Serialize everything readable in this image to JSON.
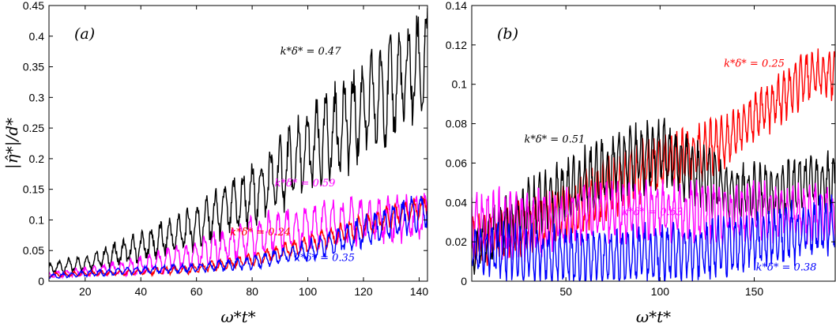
{
  "chart_data": [
    {
      "type": "line",
      "panel_label": "(a)",
      "xlabel": "ω*t*",
      "ylabel": "|η̂*|/d*",
      "xlim": [
        7,
        143
      ],
      "ylim": [
        0,
        0.45
      ],
      "xticks": [
        20,
        40,
        60,
        80,
        100,
        120,
        140
      ],
      "yticks": [
        0,
        0.05,
        0.1,
        0.15,
        0.2,
        0.25,
        0.3,
        0.35,
        0.4,
        0.45
      ],
      "ytick_labels": [
        "0",
        "0.05",
        "0.1",
        "0.15",
        "0.2",
        "0.25",
        "0.3",
        "0.35",
        "0.4",
        "0.45"
      ],
      "series": [
        {
          "name": "k*δ* = 0.47",
          "color": "#000000",
          "period": 3.3,
          "x": [
            7,
            20,
            40,
            60,
            80,
            100,
            120,
            143
          ],
          "mean": [
            0.02,
            0.03,
            0.055,
            0.09,
            0.14,
            0.21,
            0.28,
            0.36
          ],
          "amp": [
            0.008,
            0.01,
            0.02,
            0.03,
            0.04,
            0.055,
            0.065,
            0.07
          ]
        },
        {
          "name": "k*δ* = 0.59",
          "color": "#ff00ff",
          "period": 3.3,
          "x": [
            7,
            20,
            40,
            60,
            80,
            100,
            120,
            143
          ],
          "mean": [
            0.01,
            0.015,
            0.025,
            0.045,
            0.07,
            0.09,
            0.1,
            0.105
          ],
          "amp": [
            0.004,
            0.006,
            0.012,
            0.02,
            0.028,
            0.03,
            0.03,
            0.03
          ]
        },
        {
          "name": "k*δ* = 0.24",
          "color": "#ff0000",
          "period": 3.3,
          "x": [
            7,
            20,
            40,
            60,
            80,
            100,
            120,
            143
          ],
          "mean": [
            0.01,
            0.012,
            0.015,
            0.02,
            0.035,
            0.06,
            0.09,
            0.125
          ],
          "amp": [
            0.003,
            0.003,
            0.004,
            0.006,
            0.008,
            0.012,
            0.015,
            0.015
          ]
        },
        {
          "name": "k*δ* = 0.35",
          "color": "#0000ff",
          "period": 3.3,
          "x": [
            7,
            20,
            40,
            60,
            80,
            100,
            120,
            143
          ],
          "mean": [
            0.008,
            0.012,
            0.018,
            0.022,
            0.03,
            0.05,
            0.08,
            0.12
          ],
          "amp": [
            0.003,
            0.004,
            0.005,
            0.006,
            0.009,
            0.014,
            0.02,
            0.025
          ]
        }
      ],
      "annotations": [
        {
          "text": "k*δ* = 0.47",
          "color": "#000000",
          "x": 101,
          "y": 0.37
        },
        {
          "text": "k*δ* = 0.59",
          "color": "#ff00ff",
          "x": 99,
          "y": 0.155
        },
        {
          "text": "k*δ* = 0.24",
          "color": "#ff0000",
          "x": 83,
          "y": 0.075
        },
        {
          "text": "k*δ* = 0.35",
          "color": "#0000ff",
          "x": 106,
          "y": 0.033
        }
      ]
    },
    {
      "type": "line",
      "panel_label": "(b)",
      "xlabel": "ω*t*",
      "ylabel": "",
      "xlim": [
        0,
        193
      ],
      "ylim": [
        0,
        0.14
      ],
      "xticks": [
        50,
        100,
        150
      ],
      "yticks": [
        0,
        0.02,
        0.04,
        0.06,
        0.08,
        0.1,
        0.12,
        0.14
      ],
      "ytick_labels": [
        "0",
        "0.02",
        "0.04",
        "0.06",
        "0.08",
        "0.1",
        "0.12",
        "0.14"
      ],
      "series": [
        {
          "name": "k*δ* = 0.25",
          "color": "#ff0000",
          "period": 3,
          "x": [
            0,
            20,
            40,
            60,
            80,
            100,
            120,
            140,
            160,
            180,
            193
          ],
          "mean": [
            0.02,
            0.025,
            0.03,
            0.04,
            0.05,
            0.06,
            0.065,
            0.075,
            0.09,
            0.105,
            0.105
          ],
          "amp": [
            0.01,
            0.01,
            0.012,
            0.012,
            0.012,
            0.012,
            0.012,
            0.01,
            0.01,
            0.01,
            0.01
          ]
        },
        {
          "name": "k*δ* = 0.51",
          "color": "#000000",
          "period": 3,
          "x": [
            0,
            20,
            40,
            60,
            80,
            100,
            120,
            140,
            160,
            180,
            193
          ],
          "mean": [
            0.015,
            0.03,
            0.04,
            0.05,
            0.06,
            0.065,
            0.055,
            0.045,
            0.045,
            0.05,
            0.05
          ],
          "amp": [
            0.01,
            0.012,
            0.014,
            0.014,
            0.014,
            0.014,
            0.014,
            0.012,
            0.012,
            0.012,
            0.012
          ]
        },
        {
          "name": "k*δ* = 0.63",
          "color": "#ff00ff",
          "period": 3,
          "x": [
            0,
            20,
            40,
            60,
            80,
            100,
            120,
            140,
            160,
            180,
            193
          ],
          "mean": [
            0.03,
            0.028,
            0.03,
            0.035,
            0.035,
            0.035,
            0.035,
            0.035,
            0.035,
            0.035,
            0.035
          ],
          "amp": [
            0.014,
            0.014,
            0.013,
            0.012,
            0.012,
            0.012,
            0.012,
            0.012,
            0.012,
            0.012,
            0.012
          ]
        },
        {
          "name": "k*δ* = 0.38",
          "color": "#0000ff",
          "period": 3,
          "x": [
            0,
            20,
            40,
            60,
            80,
            100,
            120,
            140,
            160,
            180,
            193
          ],
          "mean": [
            0.015,
            0.015,
            0.013,
            0.012,
            0.012,
            0.015,
            0.015,
            0.018,
            0.022,
            0.026,
            0.028
          ],
          "amp": [
            0.01,
            0.012,
            0.012,
            0.012,
            0.012,
            0.012,
            0.012,
            0.012,
            0.012,
            0.012,
            0.012
          ]
        }
      ],
      "annotations": [
        {
          "text": "k*δ* = 0.25",
          "color": "#ff0000",
          "x": 150,
          "y": 0.109
        },
        {
          "text": "k*δ* = 0.51",
          "color": "#000000",
          "x": 44,
          "y": 0.0705
        },
        {
          "text": "k*δ* = 0.63",
          "color": "#ff00ff",
          "x": 96,
          "y": 0.0335
        },
        {
          "text": "k*δ* = 0.38",
          "color": "#0000ff",
          "x": 167,
          "y": 0.0055
        }
      ]
    }
  ]
}
